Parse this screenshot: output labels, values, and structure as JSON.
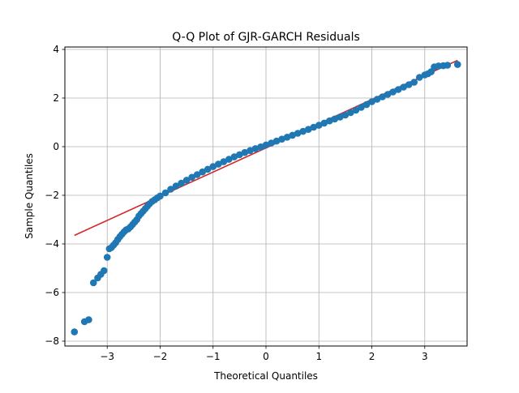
{
  "chart_data": {
    "type": "scatter",
    "title": "Q-Q Plot of GJR-GARCH Residuals",
    "xlabel": "Theoretical Quantiles",
    "ylabel": "Sample Quantiles",
    "xlim": [
      -3.8,
      3.8
    ],
    "ylim": [
      -8.2,
      4.1
    ],
    "grid": true,
    "xticks": [
      -3,
      -2,
      -1,
      0,
      1,
      2,
      3
    ],
    "yticks": [
      -8,
      -6,
      -4,
      -2,
      0,
      2,
      4
    ],
    "xtick_labels": [
      "−3",
      "−2",
      "−1",
      "0",
      "1",
      "2",
      "3"
    ],
    "ytick_labels": [
      "−8",
      "−6",
      "−4",
      "−2",
      "0",
      "2",
      "4"
    ],
    "point_color": "#1f77b4",
    "line_color": "#d62728",
    "reference_line": {
      "x": [
        -3.62,
        3.62
      ],
      "y": [
        -3.65,
        3.55
      ]
    },
    "series": [
      {
        "x": [
          -3.62,
          -3.43,
          -3.35,
          -3.26,
          -3.18,
          -3.12,
          -3.06,
          -3.0,
          -2.96,
          -2.92,
          -2.88,
          -2.84,
          -2.8,
          -2.76,
          -2.72,
          -2.68,
          -2.64,
          -2.6,
          -2.56,
          -2.52,
          -2.48,
          -2.44,
          -2.4,
          -2.36,
          -2.32,
          -2.28,
          -2.24,
          -2.2,
          -2.15,
          -2.1,
          -2.05,
          -2.0,
          -1.9,
          -1.8,
          -1.7,
          -1.6,
          -1.5,
          -1.4,
          -1.3,
          -1.2,
          -1.1,
          -1.0,
          -0.9,
          -0.8,
          -0.7,
          -0.6,
          -0.5,
          -0.4,
          -0.3,
          -0.2,
          -0.1,
          0.0,
          0.1,
          0.2,
          0.3,
          0.4,
          0.5,
          0.6,
          0.7,
          0.8,
          0.9,
          1.0,
          1.1,
          1.2,
          1.3,
          1.4,
          1.5,
          1.6,
          1.7,
          1.8,
          1.9,
          2.0,
          2.1,
          2.2,
          2.3,
          2.4,
          2.5,
          2.6,
          2.7,
          2.8,
          2.9,
          3.0,
          3.06,
          3.12,
          3.18,
          3.26,
          3.35,
          3.43,
          3.62
        ],
        "y": [
          -7.62,
          -7.2,
          -7.12,
          -5.6,
          -5.4,
          -5.25,
          -5.1,
          -4.55,
          -4.2,
          -4.15,
          -4.05,
          -3.95,
          -3.82,
          -3.7,
          -3.6,
          -3.5,
          -3.42,
          -3.38,
          -3.3,
          -3.2,
          -3.1,
          -3.0,
          -2.85,
          -2.75,
          -2.65,
          -2.55,
          -2.45,
          -2.35,
          -2.25,
          -2.18,
          -2.1,
          -2.03,
          -1.9,
          -1.75,
          -1.62,
          -1.5,
          -1.38,
          -1.26,
          -1.15,
          -1.04,
          -0.93,
          -0.82,
          -0.72,
          -0.62,
          -0.52,
          -0.42,
          -0.33,
          -0.24,
          -0.16,
          -0.08,
          -0.01,
          0.07,
          0.15,
          0.23,
          0.31,
          0.39,
          0.47,
          0.55,
          0.63,
          0.71,
          0.8,
          0.88,
          0.97,
          1.06,
          1.14,
          1.22,
          1.3,
          1.4,
          1.5,
          1.62,
          1.73,
          1.85,
          1.95,
          2.05,
          2.15,
          2.25,
          2.35,
          2.45,
          2.55,
          2.65,
          2.85,
          2.95,
          3.0,
          3.08,
          3.28,
          3.32,
          3.33,
          3.35,
          3.38
        ]
      }
    ]
  }
}
